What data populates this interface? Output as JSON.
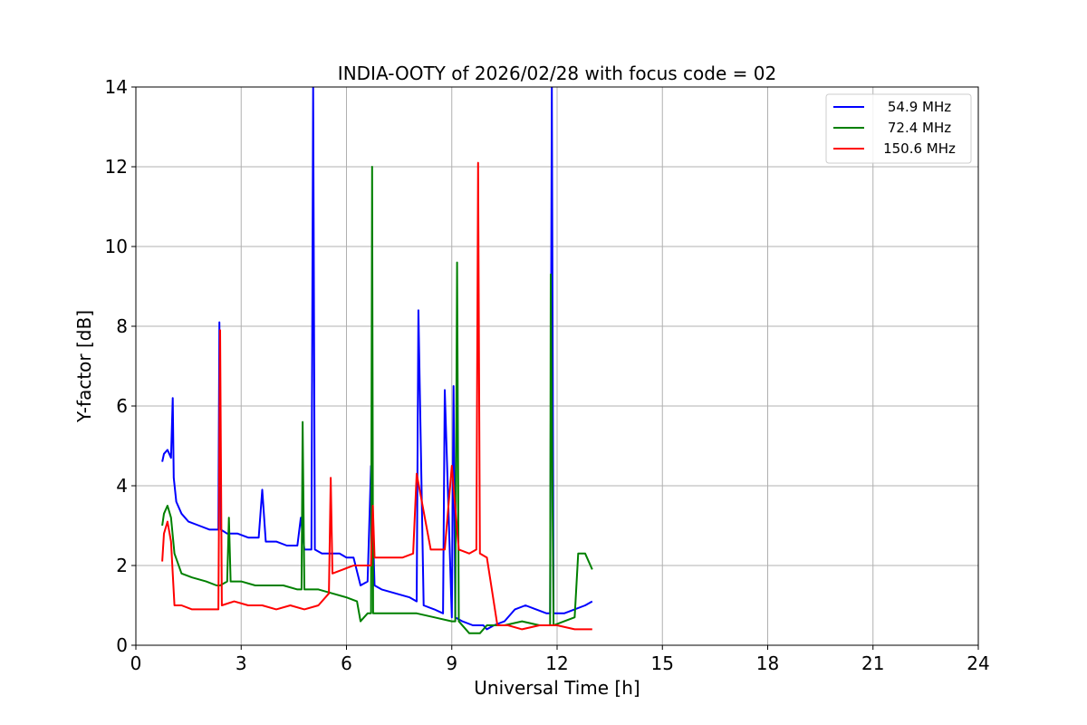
{
  "chart_data": {
    "type": "line",
    "title": "INDIA-OOTY of 2026/02/28 with focus code = 02",
    "xlabel": "Universal Time [h]",
    "ylabel": "Y-factor [dB]",
    "xlim": [
      0,
      24
    ],
    "ylim": [
      0,
      14
    ],
    "xticks": [
      0,
      3,
      6,
      9,
      12,
      15,
      18,
      21,
      24
    ],
    "yticks": [
      0,
      2,
      4,
      6,
      8,
      10,
      12,
      14
    ],
    "grid": true,
    "legend_position": "top-right",
    "series": [
      {
        "name": "54.9 MHz",
        "color": "#0000ff",
        "x": [
          0.75,
          0.8,
          0.9,
          1.0,
          1.05,
          1.08,
          1.15,
          1.3,
          1.5,
          1.8,
          2.1,
          2.35,
          2.38,
          2.42,
          2.6,
          2.9,
          3.2,
          3.5,
          3.6,
          3.7,
          4.0,
          4.3,
          4.6,
          4.7,
          4.8,
          5.0,
          5.05,
          5.1,
          5.3,
          5.6,
          5.8,
          6.0,
          6.2,
          6.4,
          6.6,
          6.7,
          6.8,
          7.0,
          7.4,
          7.8,
          8.0,
          8.05,
          8.2,
          8.5,
          8.75,
          8.8,
          9.0,
          9.05,
          9.1,
          9.3,
          9.6,
          9.9,
          10.0,
          10.2,
          10.5,
          10.8,
          11.1,
          11.4,
          11.7,
          11.8,
          11.85,
          11.9,
          12.2,
          12.5,
          12.8,
          13.0
        ],
        "y": [
          4.6,
          4.8,
          4.9,
          4.7,
          6.2,
          4.2,
          3.6,
          3.3,
          3.1,
          3.0,
          2.9,
          2.9,
          8.1,
          2.9,
          2.8,
          2.8,
          2.7,
          2.7,
          3.9,
          2.6,
          2.6,
          2.5,
          2.5,
          3.2,
          2.4,
          2.4,
          14.0,
          2.4,
          2.3,
          2.3,
          2.3,
          2.2,
          2.2,
          1.5,
          1.6,
          4.5,
          1.5,
          1.4,
          1.3,
          1.2,
          1.1,
          8.4,
          1.0,
          0.9,
          0.8,
          6.4,
          0.7,
          6.5,
          0.7,
          0.6,
          0.5,
          0.5,
          0.4,
          0.5,
          0.6,
          0.9,
          1.0,
          0.9,
          0.8,
          0.8,
          14.0,
          0.8,
          0.8,
          0.9,
          1.0,
          1.1
        ]
      },
      {
        "name": "72.4 MHz",
        "color": "#008000",
        "x": [
          0.75,
          0.8,
          0.9,
          1.0,
          1.1,
          1.3,
          1.6,
          2.0,
          2.3,
          2.4,
          2.6,
          2.65,
          2.7,
          3.0,
          3.4,
          3.8,
          4.2,
          4.6,
          4.72,
          4.75,
          4.8,
          5.2,
          5.6,
          6.0,
          6.3,
          6.4,
          6.6,
          6.7,
          6.73,
          6.76,
          7.0,
          7.5,
          8.0,
          8.5,
          9.0,
          9.1,
          9.15,
          9.2,
          9.5,
          9.8,
          10.0,
          10.5,
          11.0,
          11.5,
          11.8,
          11.82,
          11.9,
          12.2,
          12.5,
          12.6,
          12.8,
          13.0
        ],
        "y": [
          3.0,
          3.3,
          3.5,
          3.2,
          2.3,
          1.8,
          1.7,
          1.6,
          1.5,
          1.5,
          1.6,
          3.2,
          1.6,
          1.6,
          1.5,
          1.5,
          1.5,
          1.4,
          1.4,
          5.6,
          1.4,
          1.4,
          1.3,
          1.2,
          1.1,
          0.6,
          0.8,
          0.8,
          12.0,
          0.8,
          0.8,
          0.8,
          0.8,
          0.7,
          0.6,
          0.6,
          9.6,
          0.6,
          0.3,
          0.3,
          0.5,
          0.5,
          0.6,
          0.5,
          0.5,
          9.3,
          0.5,
          0.6,
          0.7,
          2.3,
          2.3,
          1.9
        ]
      },
      {
        "name": "150.6 MHz",
        "color": "#ff0000",
        "x": [
          0.75,
          0.8,
          0.9,
          1.0,
          1.1,
          1.3,
          1.6,
          2.0,
          2.35,
          2.4,
          2.45,
          2.8,
          3.2,
          3.6,
          4.0,
          4.4,
          4.8,
          5.2,
          5.5,
          5.55,
          5.6,
          5.9,
          6.2,
          6.5,
          6.7,
          6.75,
          6.8,
          7.2,
          7.6,
          7.9,
          8.0,
          8.4,
          8.8,
          9.0,
          9.2,
          9.5,
          9.7,
          9.75,
          9.8,
          10.0,
          10.3,
          10.6,
          11.0,
          11.5,
          12.0,
          12.5,
          13.0
        ],
        "y": [
          2.1,
          2.8,
          3.1,
          2.6,
          1.0,
          1.0,
          0.9,
          0.9,
          0.9,
          7.9,
          1.0,
          1.1,
          1.0,
          1.0,
          0.9,
          1.0,
          0.9,
          1.0,
          1.3,
          4.2,
          1.8,
          1.9,
          2.0,
          2.0,
          2.0,
          3.5,
          2.2,
          2.2,
          2.2,
          2.3,
          4.3,
          2.4,
          2.4,
          4.5,
          2.4,
          2.3,
          2.4,
          12.1,
          2.3,
          2.2,
          0.5,
          0.5,
          0.4,
          0.5,
          0.5,
          0.4,
          0.4
        ]
      }
    ]
  }
}
